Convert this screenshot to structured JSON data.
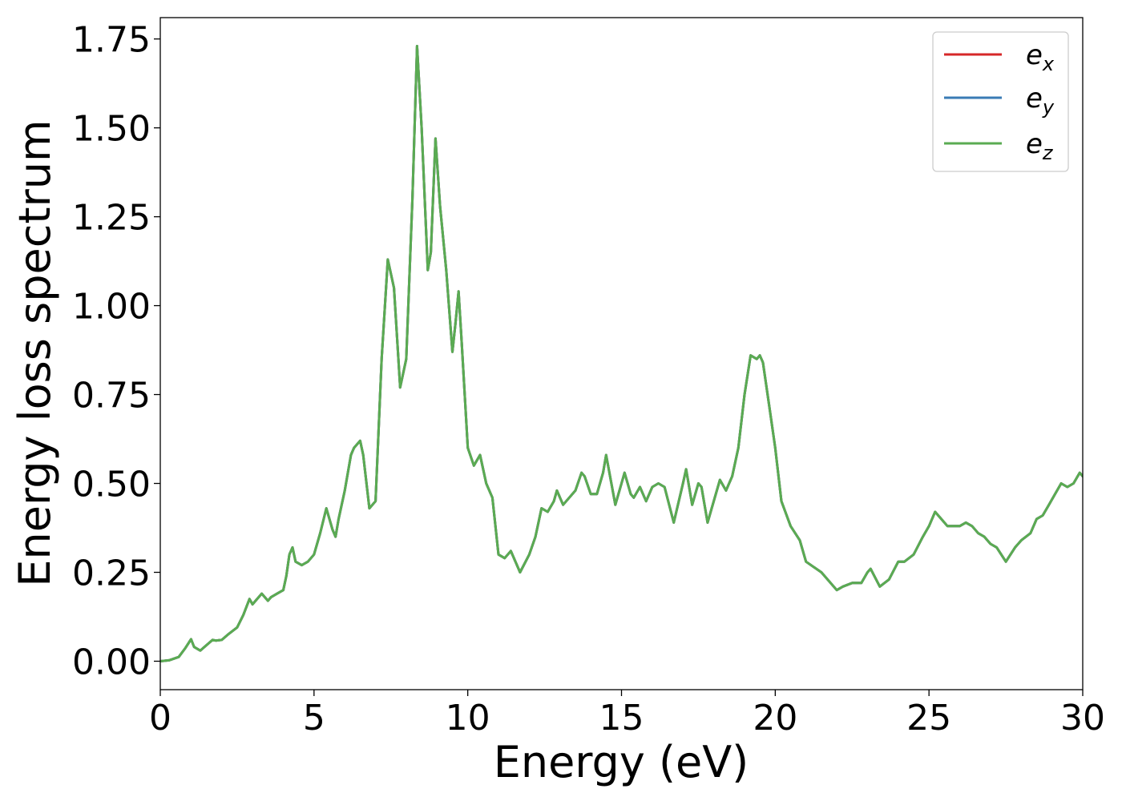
{
  "chart_data": {
    "type": "line",
    "xlabel": "Energy (eV)",
    "ylabel": "Energy loss spectrum",
    "xlim": [
      0,
      30
    ],
    "ylim": [
      -0.08,
      1.81
    ],
    "xticks": [
      0,
      5,
      10,
      15,
      20,
      25,
      30
    ],
    "yticks": [
      0.0,
      0.25,
      0.5,
      0.75,
      1.0,
      1.25,
      1.5,
      1.75
    ],
    "xtick_labels": [
      "0",
      "5",
      "10",
      "15",
      "20",
      "25",
      "30"
    ],
    "ytick_labels": [
      "0.00",
      "0.25",
      "0.50",
      "0.75",
      "1.00",
      "1.25",
      "1.50",
      "1.75"
    ],
    "grid": false,
    "legend_position": "top-right",
    "legend": [
      {
        "base": "e",
        "sub": "x",
        "color": "#d62728"
      },
      {
        "base": "e",
        "sub": "y",
        "color": "#3a7bb5"
      },
      {
        "base": "e",
        "sub": "z",
        "color": "#5aab52"
      }
    ],
    "x": [
      0,
      0.3,
      0.6,
      0.8,
      1.0,
      1.1,
      1.3,
      1.5,
      1.7,
      1.8,
      2.0,
      2.2,
      2.5,
      2.7,
      2.9,
      3.0,
      3.1,
      3.3,
      3.5,
      3.6,
      3.8,
      4.0,
      4.1,
      4.2,
      4.3,
      4.4,
      4.6,
      4.8,
      5.0,
      5.2,
      5.4,
      5.6,
      5.7,
      5.8,
      6.0,
      6.2,
      6.3,
      6.5,
      6.6,
      6.8,
      7.0,
      7.2,
      7.4,
      7.6,
      7.8,
      8.0,
      8.2,
      8.35,
      8.5,
      8.7,
      8.8,
      8.95,
      9.1,
      9.3,
      9.5,
      9.6,
      9.7,
      9.8,
      10.0,
      10.2,
      10.4,
      10.6,
      10.8,
      11.0,
      11.2,
      11.4,
      11.7,
      12.0,
      12.2,
      12.4,
      12.6,
      12.8,
      12.9,
      13.1,
      13.3,
      13.5,
      13.7,
      13.8,
      14.0,
      14.2,
      14.4,
      14.5,
      14.8,
      15.0,
      15.1,
      15.3,
      15.4,
      15.6,
      15.8,
      16.0,
      16.2,
      16.4,
      16.7,
      17.0,
      17.1,
      17.3,
      17.5,
      17.6,
      17.8,
      18.0,
      18.2,
      18.4,
      18.6,
      18.8,
      19.0,
      19.2,
      19.4,
      19.5,
      19.6,
      19.8,
      20.0,
      20.2,
      20.5,
      20.8,
      21.0,
      21.5,
      22.0,
      22.2,
      22.5,
      22.8,
      23.0,
      23.1,
      23.4,
      23.7,
      24.0,
      24.2,
      24.5,
      24.8,
      25.0,
      25.2,
      25.4,
      25.6,
      25.8,
      26.0,
      26.2,
      26.4,
      26.6,
      26.8,
      27.0,
      27.2,
      27.5,
      27.8,
      28.0,
      28.3,
      28.5,
      28.7,
      28.9,
      29.1,
      29.3,
      29.5,
      29.7,
      29.9,
      30.0
    ],
    "series": [
      {
        "name": "e_x",
        "color": "#d62728",
        "values": [
          0.0,
          0.003,
          0.012,
          0.035,
          0.062,
          0.04,
          0.03,
          0.045,
          0.06,
          0.058,
          0.06,
          0.075,
          0.095,
          0.13,
          0.175,
          0.16,
          0.17,
          0.19,
          0.17,
          0.18,
          0.19,
          0.2,
          0.24,
          0.3,
          0.32,
          0.28,
          0.27,
          0.28,
          0.3,
          0.36,
          0.43,
          0.37,
          0.35,
          0.4,
          0.48,
          0.58,
          0.6,
          0.62,
          0.58,
          0.43,
          0.45,
          0.85,
          1.13,
          1.05,
          0.77,
          0.85,
          1.3,
          1.73,
          1.5,
          1.1,
          1.15,
          1.47,
          1.28,
          1.1,
          0.87,
          0.95,
          1.04,
          0.9,
          0.6,
          0.55,
          0.58,
          0.5,
          0.46,
          0.3,
          0.29,
          0.31,
          0.25,
          0.3,
          0.35,
          0.43,
          0.42,
          0.45,
          0.48,
          0.44,
          0.46,
          0.48,
          0.53,
          0.52,
          0.47,
          0.47,
          0.53,
          0.58,
          0.44,
          0.5,
          0.53,
          0.47,
          0.46,
          0.49,
          0.45,
          0.49,
          0.5,
          0.49,
          0.39,
          0.5,
          0.54,
          0.44,
          0.5,
          0.49,
          0.39,
          0.45,
          0.51,
          0.48,
          0.52,
          0.6,
          0.75,
          0.86,
          0.85,
          0.86,
          0.84,
          0.72,
          0.6,
          0.45,
          0.38,
          0.34,
          0.28,
          0.25,
          0.2,
          0.21,
          0.22,
          0.22,
          0.25,
          0.26,
          0.21,
          0.23,
          0.28,
          0.28,
          0.3,
          0.35,
          0.38,
          0.42,
          0.4,
          0.38,
          0.38,
          0.38,
          0.39,
          0.38,
          0.36,
          0.35,
          0.33,
          0.32,
          0.28,
          0.32,
          0.34,
          0.36,
          0.4,
          0.41,
          0.44,
          0.47,
          0.5,
          0.49,
          0.5,
          0.53,
          0.52
        ]
      },
      {
        "name": "e_y",
        "color": "#3a7bb5",
        "values": [
          0.0,
          0.003,
          0.012,
          0.035,
          0.062,
          0.04,
          0.03,
          0.045,
          0.06,
          0.058,
          0.06,
          0.075,
          0.095,
          0.13,
          0.175,
          0.16,
          0.17,
          0.19,
          0.17,
          0.18,
          0.19,
          0.2,
          0.24,
          0.3,
          0.32,
          0.28,
          0.27,
          0.28,
          0.3,
          0.36,
          0.43,
          0.37,
          0.35,
          0.4,
          0.48,
          0.58,
          0.6,
          0.62,
          0.58,
          0.43,
          0.45,
          0.85,
          1.13,
          1.05,
          0.77,
          0.85,
          1.3,
          1.73,
          1.5,
          1.1,
          1.15,
          1.47,
          1.28,
          1.1,
          0.87,
          0.95,
          1.04,
          0.9,
          0.6,
          0.55,
          0.58,
          0.5,
          0.46,
          0.3,
          0.29,
          0.31,
          0.25,
          0.3,
          0.35,
          0.43,
          0.42,
          0.45,
          0.48,
          0.44,
          0.46,
          0.48,
          0.53,
          0.52,
          0.47,
          0.47,
          0.53,
          0.58,
          0.44,
          0.5,
          0.53,
          0.47,
          0.46,
          0.49,
          0.45,
          0.49,
          0.5,
          0.49,
          0.39,
          0.5,
          0.54,
          0.44,
          0.5,
          0.49,
          0.39,
          0.45,
          0.51,
          0.48,
          0.52,
          0.6,
          0.75,
          0.86,
          0.85,
          0.86,
          0.84,
          0.72,
          0.6,
          0.45,
          0.38,
          0.34,
          0.28,
          0.25,
          0.2,
          0.21,
          0.22,
          0.22,
          0.25,
          0.26,
          0.21,
          0.23,
          0.28,
          0.28,
          0.3,
          0.35,
          0.38,
          0.42,
          0.4,
          0.38,
          0.38,
          0.38,
          0.39,
          0.38,
          0.36,
          0.35,
          0.33,
          0.32,
          0.28,
          0.32,
          0.34,
          0.36,
          0.4,
          0.41,
          0.44,
          0.47,
          0.5,
          0.49,
          0.5,
          0.53,
          0.52
        ]
      },
      {
        "name": "e_z",
        "color": "#5aab52",
        "values": [
          0.0,
          0.003,
          0.012,
          0.035,
          0.062,
          0.04,
          0.03,
          0.045,
          0.06,
          0.058,
          0.06,
          0.075,
          0.095,
          0.13,
          0.175,
          0.16,
          0.17,
          0.19,
          0.17,
          0.18,
          0.19,
          0.2,
          0.24,
          0.3,
          0.32,
          0.28,
          0.27,
          0.28,
          0.3,
          0.36,
          0.43,
          0.37,
          0.35,
          0.4,
          0.48,
          0.58,
          0.6,
          0.62,
          0.58,
          0.43,
          0.45,
          0.85,
          1.13,
          1.05,
          0.77,
          0.85,
          1.3,
          1.73,
          1.5,
          1.1,
          1.15,
          1.47,
          1.28,
          1.1,
          0.87,
          0.95,
          1.04,
          0.9,
          0.6,
          0.55,
          0.58,
          0.5,
          0.46,
          0.3,
          0.29,
          0.31,
          0.25,
          0.3,
          0.35,
          0.43,
          0.42,
          0.45,
          0.48,
          0.44,
          0.46,
          0.48,
          0.53,
          0.52,
          0.47,
          0.47,
          0.53,
          0.58,
          0.44,
          0.5,
          0.53,
          0.47,
          0.46,
          0.49,
          0.45,
          0.49,
          0.5,
          0.49,
          0.39,
          0.5,
          0.54,
          0.44,
          0.5,
          0.49,
          0.39,
          0.45,
          0.51,
          0.48,
          0.52,
          0.6,
          0.75,
          0.86,
          0.85,
          0.86,
          0.84,
          0.72,
          0.6,
          0.45,
          0.38,
          0.34,
          0.28,
          0.25,
          0.2,
          0.21,
          0.22,
          0.22,
          0.25,
          0.26,
          0.21,
          0.23,
          0.28,
          0.28,
          0.3,
          0.35,
          0.38,
          0.42,
          0.4,
          0.38,
          0.38,
          0.38,
          0.39,
          0.38,
          0.36,
          0.35,
          0.33,
          0.32,
          0.28,
          0.32,
          0.34,
          0.36,
          0.4,
          0.41,
          0.44,
          0.47,
          0.5,
          0.49,
          0.5,
          0.53,
          0.52
        ]
      }
    ]
  }
}
